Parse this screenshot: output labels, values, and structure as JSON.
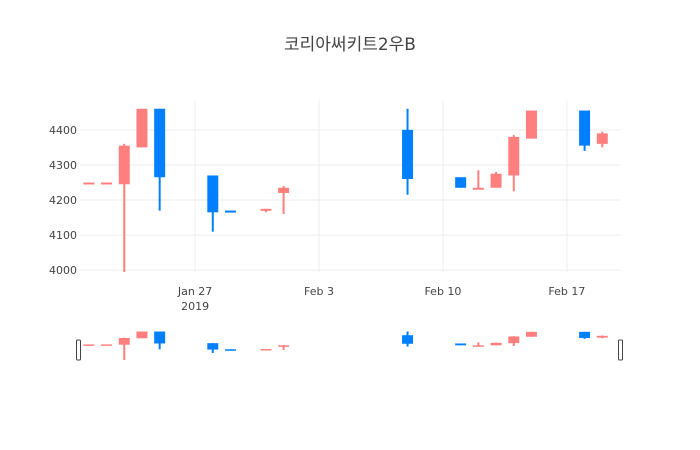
{
  "chart_data": {
    "type": "candlestick",
    "title": "코리아써키트2우B",
    "xlabel": "",
    "ylabel": "",
    "ylim": [
      3995,
      4485
    ],
    "y_ticks": [
      4000,
      4100,
      4200,
      4300,
      4400
    ],
    "x_range": [
      "2019-01-20T12:00",
      "2019-02-20T00:00"
    ],
    "x_ticks": [
      {
        "date": "2019-01-27",
        "label": "Jan 27",
        "sublabel": "2019"
      },
      {
        "date": "2019-02-03",
        "label": "Feb 3",
        "sublabel": ""
      },
      {
        "date": "2019-02-10",
        "label": "Feb 10",
        "sublabel": ""
      },
      {
        "date": "2019-02-17",
        "label": "Feb 17",
        "sublabel": ""
      }
    ],
    "grid": true,
    "colors": {
      "increasing": "#ff7f7f",
      "decreasing": "#0080ff"
    },
    "candles": [
      {
        "date": "2019-01-21",
        "open": 4250,
        "high": 4250,
        "low": 4250,
        "close": 4250
      },
      {
        "date": "2019-01-22",
        "open": 4250,
        "high": 4250,
        "low": 4250,
        "close": 4250
      },
      {
        "date": "2019-01-23",
        "open": 4245,
        "high": 4360,
        "low": 3995,
        "close": 4355
      },
      {
        "date": "2019-01-24",
        "open": 4350,
        "high": 4460,
        "low": 4350,
        "close": 4460
      },
      {
        "date": "2019-01-25",
        "open": 4460,
        "high": 4460,
        "low": 4170,
        "close": 4265
      },
      {
        "date": "2019-01-28",
        "open": 4270,
        "high": 4270,
        "low": 4110,
        "close": 4165
      },
      {
        "date": "2019-01-29",
        "open": 4170,
        "high": 4170,
        "low": 4165,
        "close": 4165
      },
      {
        "date": "2019-01-31",
        "open": 4170,
        "high": 4175,
        "low": 4165,
        "close": 4175
      },
      {
        "date": "2019-02-01",
        "open": 4220,
        "high": 4240,
        "low": 4160,
        "close": 4235
      },
      {
        "date": "2019-02-08",
        "open": 4400,
        "high": 4460,
        "low": 4215,
        "close": 4260
      },
      {
        "date": "2019-02-11",
        "open": 4265,
        "high": 4265,
        "low": 4235,
        "close": 4235
      },
      {
        "date": "2019-02-12",
        "open": 4235,
        "high": 4285,
        "low": 4230,
        "close": 4235
      },
      {
        "date": "2019-02-13",
        "open": 4235,
        "high": 4280,
        "low": 4235,
        "close": 4275
      },
      {
        "date": "2019-02-14",
        "open": 4270,
        "high": 4385,
        "low": 4225,
        "close": 4380
      },
      {
        "date": "2019-02-15",
        "open": 4375,
        "high": 4455,
        "low": 4375,
        "close": 4455
      },
      {
        "date": "2019-02-18",
        "open": 4455,
        "high": 4455,
        "low": 4340,
        "close": 4355
      },
      {
        "date": "2019-02-19",
        "open": 4360,
        "high": 4395,
        "low": 4350,
        "close": 4390
      }
    ]
  }
}
